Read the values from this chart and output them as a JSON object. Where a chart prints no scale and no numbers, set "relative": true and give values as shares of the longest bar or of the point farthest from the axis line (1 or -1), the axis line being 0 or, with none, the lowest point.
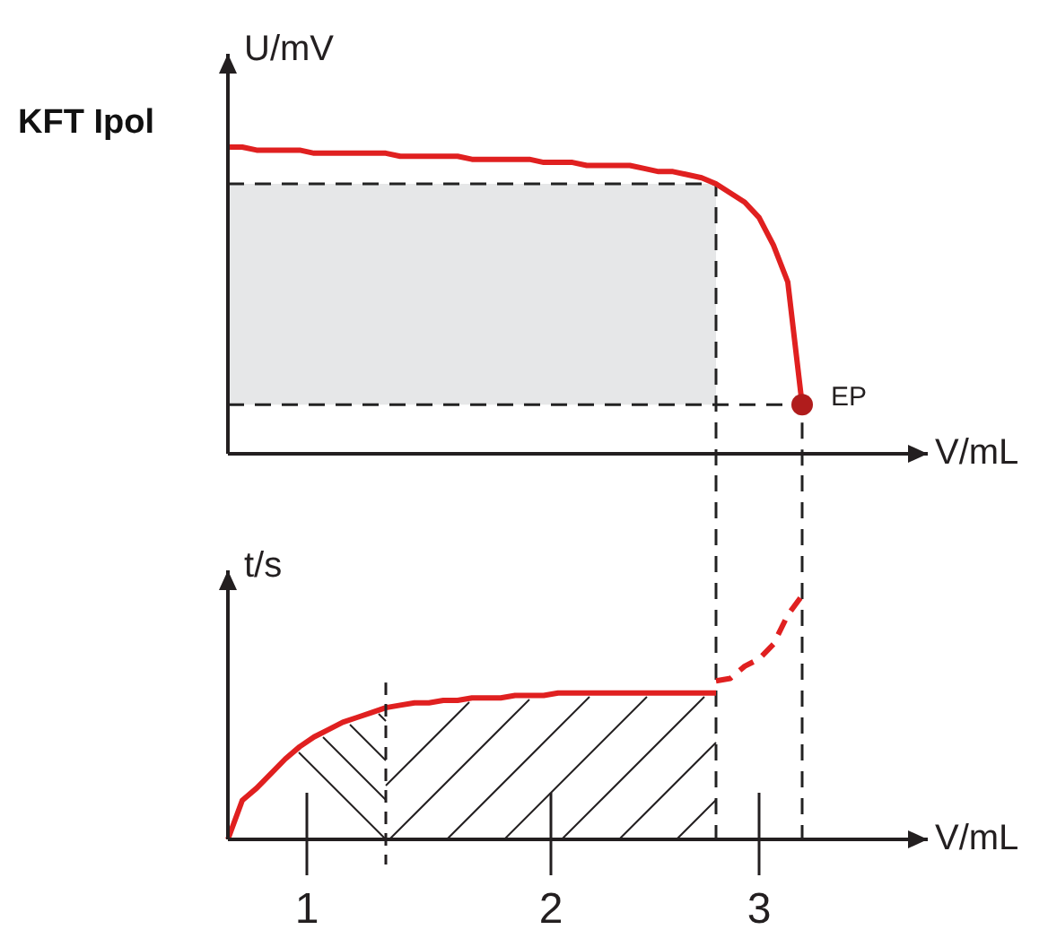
{
  "chart_data": [
    {
      "type": "line",
      "title": "KFT Ipol",
      "ylabel": "U/mV",
      "xlabel": "V/mL",
      "relative": true,
      "tick_labels": false,
      "legend": false,
      "marker": "none",
      "line_style": "solid",
      "categories": [
        null,
        null,
        null,
        null,
        null,
        null,
        null,
        null,
        null,
        null,
        null,
        null,
        null,
        null,
        null,
        null,
        null,
        null,
        null,
        null,
        null,
        null,
        null,
        null,
        null,
        null,
        null,
        null,
        null,
        null,
        null,
        null,
        null,
        null,
        null,
        null,
        null,
        null,
        null,
        null,
        null,
        null,
        null,
        null,
        null,
        null,
        null,
        null,
        null
      ],
      "series": [
        {
          "color": "#e02020",
          "values": [
            1,
            1,
            0.99,
            0.99,
            0.99,
            0.99,
            0.98,
            0.98,
            0.98,
            0.98,
            0.98,
            0.98,
            0.97,
            0.97,
            0.97,
            0.97,
            0.97,
            0.96,
            0.96,
            0.96,
            0.96,
            0.96,
            0.95,
            0.95,
            0.95,
            0.94,
            0.94,
            0.94,
            0.94,
            0.93,
            0.92,
            0.92,
            0.91,
            0.9,
            0.88,
            0.85,
            0.82,
            0.77,
            0.68,
            0.56,
            0.16,
            null,
            null,
            null,
            null,
            null,
            null,
            null,
            null
          ]
        }
      ],
      "ref_lines": [
        {
          "axis": "y",
          "value": 0.88,
          "color": "#222222",
          "line_style": "dashed"
        },
        {
          "axis": "y",
          "value": 0.16,
          "color": "#222222",
          "line_style": "dashed"
        }
      ],
      "bands": [
        {
          "axis": "y",
          "from": 0.16,
          "to": 0.88,
          "color": "#e6e7e8"
        }
      ],
      "annotations": [
        "EP"
      ]
    },
    {
      "type": "line",
      "ylabel": "t/s",
      "xlabel": "V/mL",
      "relative": true,
      "tick_labels": false,
      "legend": false,
      "marker": "none",
      "categories": [
        null,
        null,
        null,
        null,
        null,
        null,
        null,
        null,
        null,
        null,
        null,
        null,
        null,
        null,
        null,
        null,
        null,
        null,
        null,
        null,
        null,
        null,
        null,
        null,
        null,
        null,
        null,
        null,
        null,
        null,
        null,
        null,
        null,
        null,
        null,
        null,
        null,
        null,
        null,
        null,
        null,
        null,
        null,
        null,
        null,
        null,
        null,
        null,
        null
      ],
      "series": [
        {
          "color": "#e02020",
          "line_style": "solid",
          "values": [
            0,
            0.16,
            0.21,
            0.27,
            0.33,
            0.38,
            0.42,
            0.45,
            0.48,
            0.5,
            0.52,
            0.54,
            0.55,
            0.56,
            0.56,
            0.57,
            0.57,
            0.58,
            0.58,
            0.58,
            0.59,
            0.59,
            0.59,
            0.6,
            0.6,
            0.6,
            0.6,
            0.6,
            0.6,
            0.6,
            0.6,
            0.6,
            0.6,
            0.6,
            0.6,
            null,
            null,
            null,
            null,
            null,
            null,
            null,
            null,
            null,
            null,
            null,
            null,
            null,
            null
          ]
        },
        {
          "color": "#e02020",
          "line_style": "dashed",
          "values": [
            null,
            null,
            null,
            null,
            null,
            null,
            null,
            null,
            null,
            null,
            null,
            null,
            null,
            null,
            null,
            null,
            null,
            null,
            null,
            null,
            null,
            null,
            null,
            null,
            null,
            null,
            null,
            null,
            null,
            null,
            null,
            null,
            null,
            null,
            0.65,
            0.66,
            0.71,
            0.74,
            0.8,
            0.92,
            1,
            null,
            null,
            null,
            null,
            null,
            null,
            null,
            null
          ]
        }
      ],
      "annotations": [
        "1",
        "2",
        "3"
      ]
    }
  ]
}
